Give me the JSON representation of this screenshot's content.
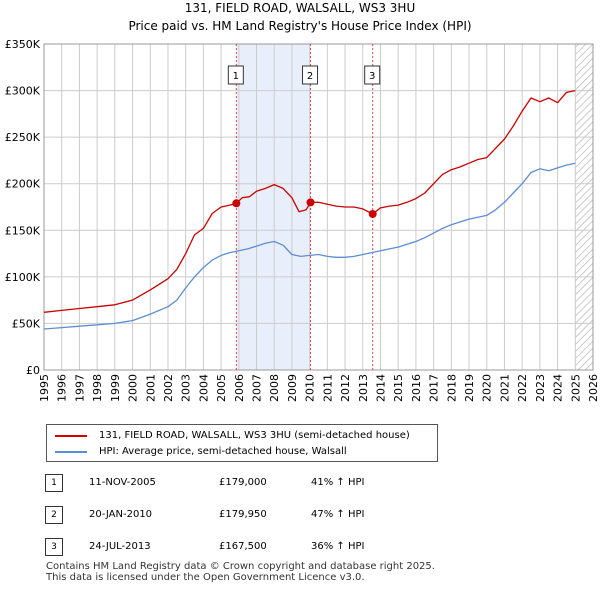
{
  "header": {
    "title": "131, FIELD ROAD, WALSALL, WS3 3HU",
    "subtitle": "Price paid vs. HM Land Registry's House Price Index (HPI)"
  },
  "colors": {
    "property": "#cc0000",
    "hpi": "#5b8ed6",
    "shade": "#e8eefa",
    "grid": "#cccccc",
    "marker_line": "#dd4444"
  },
  "legend": {
    "property_label": "131, FIELD ROAD, WALSALL, WS3 3HU (semi-detached house)",
    "hpi_label": "HPI: Average price, semi-detached house, Walsall"
  },
  "sales": [
    {
      "num": "1",
      "date": "11-NOV-2005",
      "price": "£179,000",
      "hpi_change": "41% ↑ HPI"
    },
    {
      "num": "2",
      "date": "20-JAN-2010",
      "price": "£179,950",
      "hpi_change": "47% ↑ HPI"
    },
    {
      "num": "3",
      "date": "24-JUL-2013",
      "price": "£167,500",
      "hpi_change": "36% ↑ HPI"
    }
  ],
  "footer": {
    "line1": "Contains HM Land Registry data © Crown copyright and database right 2025.",
    "line2": "This data is licensed under the Open Government Licence v3.0."
  },
  "chart_data": {
    "type": "line",
    "title": "131, FIELD ROAD, WALSALL, WS3 3HU",
    "subtitle": "Price paid vs. HM Land Registry's House Price Index (HPI)",
    "xlabel": "",
    "ylabel": "",
    "xlim": [
      1995,
      2026
    ],
    "ylim": [
      0,
      350000
    ],
    "x_ticks": [
      1995,
      1996,
      1997,
      1998,
      1999,
      2000,
      2001,
      2002,
      2003,
      2004,
      2005,
      2006,
      2007,
      2008,
      2009,
      2010,
      2011,
      2012,
      2013,
      2014,
      2015,
      2016,
      2017,
      2018,
      2019,
      2020,
      2021,
      2022,
      2023,
      2024,
      2025,
      2026
    ],
    "y_ticks": [
      {
        "value": 0,
        "label": "£0"
      },
      {
        "value": 50000,
        "label": "£50K"
      },
      {
        "value": 100000,
        "label": "£100K"
      },
      {
        "value": 150000,
        "label": "£150K"
      },
      {
        "value": 200000,
        "label": "£200K"
      },
      {
        "value": 250000,
        "label": "£250K"
      },
      {
        "value": 300000,
        "label": "£300K"
      },
      {
        "value": 350000,
        "label": "£350K"
      }
    ],
    "grid": true,
    "shaded_ranges": [
      [
        2005.86,
        2010.05
      ]
    ],
    "hatched_from": 2025.0,
    "series": [
      {
        "name": "131, FIELD ROAD, WALSALL, WS3 3HU (semi-detached house)",
        "color": "#cc0000",
        "x": [
          1995.0,
          1996.0,
          1997.0,
          1998.0,
          1999.0,
          2000.0,
          2001.0,
          2002.0,
          2002.5,
          2003.0,
          2003.5,
          2004.0,
          2004.5,
          2005.0,
          2005.5,
          2005.86,
          2006.2,
          2006.6,
          2007.0,
          2007.5,
          2008.0,
          2008.5,
          2009.0,
          2009.4,
          2009.8,
          2010.05,
          2010.5,
          2011.0,
          2011.5,
          2012.0,
          2012.5,
          2013.0,
          2013.56,
          2014.0,
          2014.5,
          2015.0,
          2015.5,
          2016.0,
          2016.5,
          2017.0,
          2017.5,
          2018.0,
          2018.5,
          2019.0,
          2019.5,
          2020.0,
          2020.5,
          2021.0,
          2021.5,
          2022.0,
          2022.5,
          2023.0,
          2023.5,
          2024.0,
          2024.5,
          2025.0
        ],
        "values": [
          62000,
          64000,
          66000,
          68000,
          70000,
          75000,
          86000,
          98000,
          108000,
          125000,
          145000,
          152000,
          168000,
          175000,
          177000,
          179000,
          185000,
          186000,
          192000,
          195000,
          199000,
          195000,
          185000,
          170000,
          172000,
          179950,
          180000,
          178000,
          176000,
          175000,
          175000,
          173000,
          167500,
          174000,
          176000,
          177000,
          180000,
          184000,
          190000,
          200000,
          210000,
          215000,
          218000,
          222000,
          226000,
          228000,
          238000,
          248000,
          262000,
          278000,
          292000,
          288000,
          292000,
          287000,
          298000,
          300000
        ]
      },
      {
        "name": "HPI: Average price, semi-detached house, Walsall",
        "color": "#5b8ed6",
        "x": [
          1995.0,
          1996.0,
          1997.0,
          1998.0,
          1999.0,
          2000.0,
          2001.0,
          2002.0,
          2002.5,
          2003.0,
          2003.5,
          2004.0,
          2004.5,
          2005.0,
          2005.5,
          2006.0,
          2006.5,
          2007.0,
          2007.5,
          2008.0,
          2008.5,
          2009.0,
          2009.5,
          2010.0,
          2010.5,
          2011.0,
          2011.5,
          2012.0,
          2012.5,
          2013.0,
          2013.5,
          2014.0,
          2014.5,
          2015.0,
          2015.5,
          2016.0,
          2016.5,
          2017.0,
          2017.5,
          2018.0,
          2018.5,
          2019.0,
          2019.5,
          2020.0,
          2020.5,
          2021.0,
          2021.5,
          2022.0,
          2022.5,
          2023.0,
          2023.5,
          2024.0,
          2024.5,
          2025.0
        ],
        "values": [
          44000,
          45500,
          47000,
          48500,
          50000,
          53000,
          60000,
          68000,
          75000,
          88000,
          100000,
          110000,
          118000,
          123000,
          126000,
          128000,
          130000,
          133000,
          136000,
          138000,
          134000,
          124000,
          122000,
          123000,
          124000,
          122000,
          121000,
          121000,
          122000,
          124000,
          126000,
          128000,
          130000,
          132000,
          135000,
          138000,
          142000,
          147000,
          152000,
          156000,
          159000,
          162000,
          164000,
          166000,
          172000,
          180000,
          190000,
          200000,
          212000,
          216000,
          214000,
          217000,
          220000,
          222000
        ]
      }
    ],
    "sale_points": [
      {
        "label": "1",
        "x": 2005.86,
        "y": 179000
      },
      {
        "label": "2",
        "x": 2010.05,
        "y": 179950
      },
      {
        "label": "3",
        "x": 2013.56,
        "y": 167500
      }
    ]
  }
}
